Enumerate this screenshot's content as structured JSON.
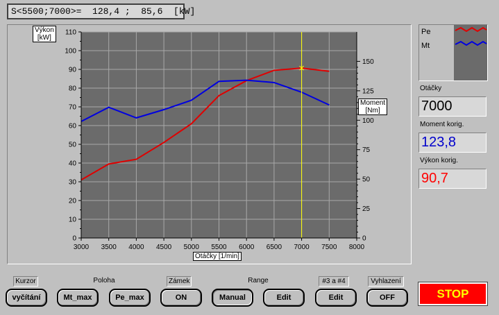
{
  "status_text": "S<5500;7000>=  128,4 ;  85,6  [kW]",
  "chart": {
    "left_axis_label": "Výkon\n[kW]",
    "right_axis_label": "Moment\n[Nm]",
    "x_axis_label": "Otáčky  [1/min]",
    "cursor_x": 7000
  },
  "chart_data": {
    "type": "line",
    "x": [
      3000,
      3500,
      4000,
      4500,
      5000,
      5500,
      6000,
      6500,
      7000,
      7500
    ],
    "xlim": [
      3000,
      8000
    ],
    "x_ticks": [
      3000,
      3500,
      4000,
      4500,
      5000,
      5500,
      6000,
      6500,
      7000,
      7500,
      8000
    ],
    "ylim_left": [
      0,
      110
    ],
    "y_ticks_left": [
      0,
      10,
      20,
      30,
      40,
      50,
      60,
      70,
      80,
      90,
      100,
      110
    ],
    "ylim_right": [
      0,
      175
    ],
    "y_ticks_right": [
      0,
      25,
      50,
      75,
      100,
      125,
      150
    ],
    "grid": true,
    "series": [
      {
        "name": "Pe",
        "axis": "left",
        "color": "#e00000",
        "values": [
          31,
          39.5,
          42,
          51,
          61,
          76,
          84,
          89.5,
          90.7,
          89
        ]
      },
      {
        "name": "Mt",
        "axis": "right",
        "color": "#0000e0",
        "values": [
          99,
          111,
          102,
          109,
          117,
          133,
          134,
          132,
          123.8,
          113
        ]
      }
    ]
  },
  "legend": {
    "items": [
      {
        "label": "Pe",
        "color": "#e00000"
      },
      {
        "label": "Mt",
        "color": "#0000e0"
      }
    ]
  },
  "readouts": {
    "rpm_label": "Otáčky",
    "rpm_value": "7000",
    "torque_label": "Moment korig.",
    "torque_value": "123,8",
    "torque_color": "#0000cc",
    "power_label": "Výkon korig.",
    "power_value": "90,7",
    "power_color": "#ff0000"
  },
  "controls": {
    "kurzor_label": "Kurzor",
    "kurzor_btn": "vyčítání",
    "poloha_label": "Poloha",
    "mt_max_btn": "Mt_max",
    "pe_max_btn": "Pe_max",
    "zamek_label": "Zámek",
    "zamek_btn": "ON",
    "range_label": "Range",
    "manual_btn": "Manual",
    "edit_btn": "Edit",
    "ch34_label": "#3 a #4",
    "ch34_btn": "Edit",
    "vyhlazeni_label": "Vyhlazení",
    "vyhlazeni_btn": "OFF",
    "stop_btn": "STOP"
  }
}
